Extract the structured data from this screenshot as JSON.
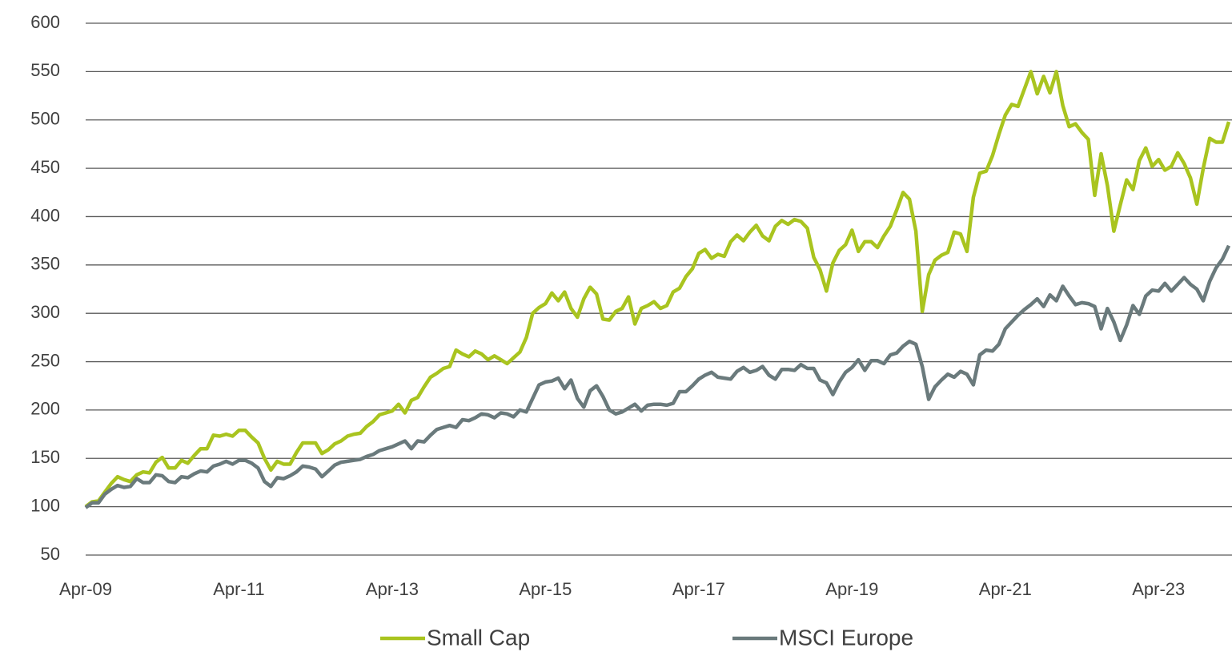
{
  "chart_data": {
    "type": "line",
    "categories": [
      "Apr-09",
      null,
      null,
      null,
      null,
      null,
      null,
      null,
      null,
      null,
      null,
      null,
      null,
      null,
      null,
      null,
      null,
      null,
      null,
      null,
      null,
      null,
      null,
      null,
      "Apr-11",
      null,
      null,
      null,
      null,
      null,
      null,
      null,
      null,
      null,
      null,
      null,
      null,
      null,
      null,
      null,
      null,
      null,
      null,
      null,
      null,
      null,
      null,
      null,
      "Apr-13",
      null,
      null,
      null,
      null,
      null,
      null,
      null,
      null,
      null,
      null,
      null,
      null,
      null,
      null,
      null,
      null,
      null,
      null,
      null,
      null,
      null,
      null,
      null,
      "Apr-15",
      null,
      null,
      null,
      null,
      null,
      null,
      null,
      null,
      null,
      null,
      null,
      null,
      null,
      null,
      null,
      null,
      null,
      null,
      null,
      null,
      null,
      null,
      null,
      "Apr-17",
      null,
      null,
      null,
      null,
      null,
      null,
      null,
      null,
      null,
      null,
      null,
      null,
      null,
      null,
      null,
      null,
      null,
      null,
      null,
      null,
      null,
      null,
      null,
      "Apr-19",
      null,
      null,
      null,
      null,
      null,
      null,
      null,
      null,
      null,
      null,
      null,
      null,
      null,
      null,
      null,
      null,
      null,
      null,
      null,
      null,
      null,
      null,
      null,
      "Apr-21",
      null,
      null,
      null,
      null,
      null,
      null,
      null,
      null,
      null,
      null,
      null,
      null,
      null,
      null,
      null,
      null,
      null,
      null,
      null,
      null,
      null,
      null,
      null,
      "Apr-23",
      null,
      null,
      null,
      null,
      null,
      null,
      null,
      null,
      null,
      null,
      null
    ],
    "series": [
      {
        "name": "Small Cap",
        "color": "#a9c41f",
        "values": [
          100,
          105,
          106,
          115,
          124,
          131,
          128,
          126,
          133,
          136,
          135,
          146,
          151,
          140,
          140,
          148,
          145,
          153,
          160,
          160,
          174,
          173,
          175,
          173,
          179,
          179,
          172,
          166,
          150,
          138,
          147,
          144,
          144,
          156,
          166,
          166,
          166,
          155,
          159,
          165,
          168,
          173,
          175,
          176,
          183,
          188,
          195,
          197,
          199,
          206,
          197,
          210,
          213,
          224,
          234,
          238,
          243,
          245,
          262,
          258,
          255,
          261,
          258,
          252,
          256,
          252,
          248,
          254,
          260,
          275,
          300,
          306,
          310,
          321,
          313,
          322,
          305,
          296,
          315,
          327,
          320,
          294,
          293,
          302,
          305,
          317,
          289,
          305,
          308,
          312,
          305,
          308,
          322,
          326,
          338,
          346,
          362,
          366,
          357,
          361,
          359,
          374,
          381,
          375,
          384,
          391,
          380,
          375,
          390,
          396,
          392,
          397,
          395,
          388,
          358,
          345,
          323,
          352,
          365,
          371,
          386,
          364,
          374,
          374,
          368,
          380,
          390,
          407,
          425,
          418,
          385,
          302,
          340,
          355,
          360,
          363,
          384,
          382,
          364,
          420,
          445,
          447,
          463,
          485,
          505,
          516,
          514,
          532,
          550,
          527,
          545,
          528,
          550,
          515,
          493,
          496,
          487,
          480,
          422,
          465,
          432,
          385,
          412,
          438,
          428,
          458,
          471,
          452,
          459,
          448,
          452,
          466,
          455,
          440,
          413,
          450,
          481,
          477,
          477,
          498
        ]
      },
      {
        "name": "MSCI Europe",
        "color": "#6a7a7c",
        "values": [
          99,
          104,
          104,
          113,
          118,
          122,
          120,
          121,
          129,
          125,
          125,
          133,
          132,
          126,
          125,
          131,
          130,
          134,
          137,
          136,
          142,
          144,
          147,
          144,
          148,
          148,
          145,
          140,
          126,
          121,
          130,
          129,
          132,
          136,
          142,
          141,
          139,
          131,
          137,
          143,
          146,
          147,
          148,
          149,
          152,
          154,
          158,
          160,
          162,
          165,
          168,
          160,
          168,
          167,
          174,
          180,
          182,
          184,
          182,
          190,
          189,
          192,
          196,
          195,
          192,
          197,
          196,
          193,
          200,
          198,
          212,
          226,
          229,
          230,
          233,
          222,
          231,
          212,
          203,
          220,
          225,
          214,
          200,
          196,
          198,
          202,
          206,
          199,
          205,
          206,
          206,
          205,
          207,
          219,
          219,
          225,
          232,
          236,
          239,
          234,
          233,
          232,
          240,
          244,
          239,
          241,
          245,
          236,
          232,
          242,
          242,
          241,
          247,
          243,
          243,
          231,
          228,
          216,
          229,
          239,
          244,
          252,
          241,
          251,
          251,
          248,
          257,
          259,
          266,
          271,
          268,
          245,
          211,
          224,
          231,
          237,
          234,
          240,
          237,
          226,
          257,
          262,
          261,
          268,
          284,
          291,
          298,
          304,
          309,
          315,
          307,
          319,
          313,
          328,
          318,
          309,
          311,
          310,
          307,
          284,
          305,
          291,
          272,
          288,
          308,
          299,
          318,
          324,
          323,
          331,
          323,
          330,
          337,
          330,
          325,
          313,
          333,
          347,
          356,
          370
        ]
      }
    ],
    "ylim": [
      50,
      600
    ],
    "yticks": [
      50,
      100,
      150,
      200,
      250,
      300,
      350,
      400,
      450,
      500,
      550,
      600
    ],
    "grid": true
  }
}
